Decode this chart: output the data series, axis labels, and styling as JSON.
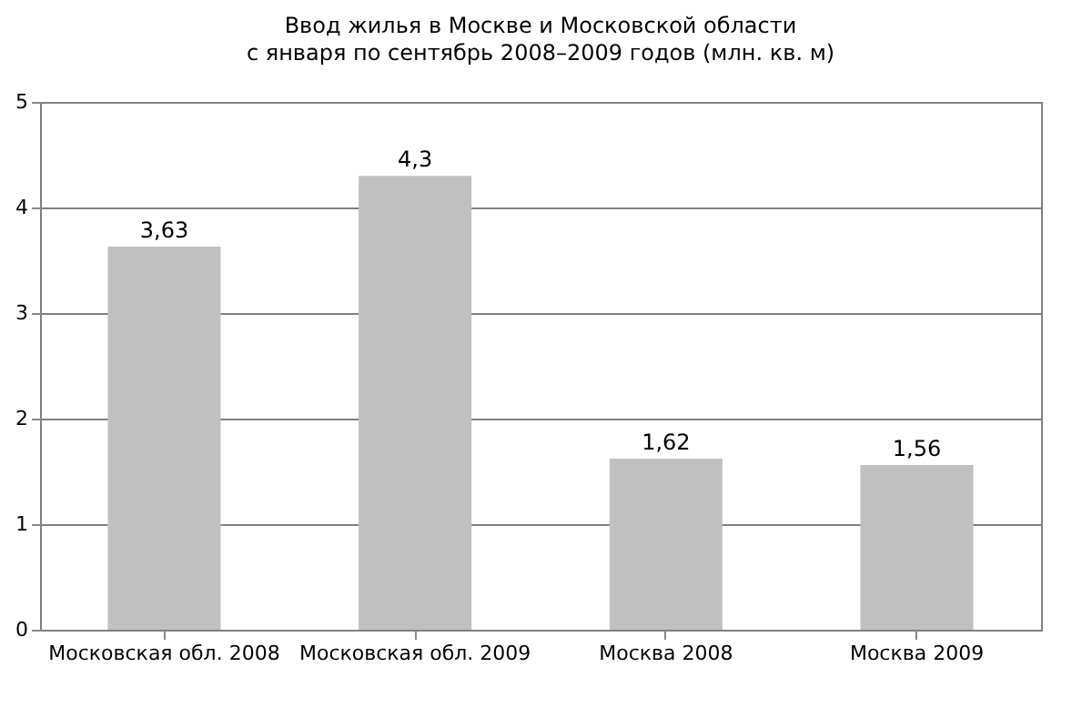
{
  "chart_data": {
    "type": "bar",
    "title": "Ввод жилья в Москве и Московской области",
    "subtitle": "с января по сентябрь 2008–2009 годов (млн. кв. м)",
    "categories": [
      "Московская обл. 2008",
      "Московская обл. 2009",
      "Москва 2008",
      "Москва 2009"
    ],
    "values": [
      3.63,
      4.3,
      1.62,
      1.56
    ],
    "value_labels": [
      "3,63",
      "4,3",
      "1,62",
      "1,56"
    ],
    "color": "#c0c0c0",
    "ylim": [
      0,
      5
    ],
    "yticks": [
      0,
      1,
      2,
      3,
      4,
      5
    ],
    "grid": "y"
  }
}
